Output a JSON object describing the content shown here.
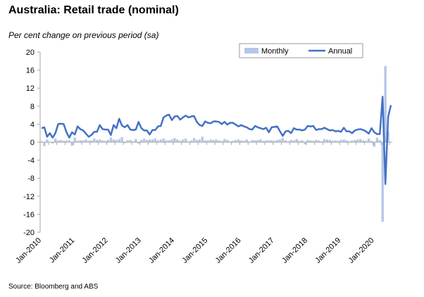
{
  "title": "Australia: Retail trade (nominal)",
  "subtitle": "Per cent change on previous period (sa)",
  "source": "Source: Bloomberg and ABS",
  "colors": {
    "monthly": "#b4c7e7",
    "annual": "#4472c4",
    "axis": "#a6a6a6"
  },
  "chart_data": {
    "type": "bar",
    "title": "Australia: Retail trade (nominal)",
    "ylabel": "Per cent change on previous period (sa)",
    "ylim": [
      -20,
      20
    ],
    "yticks": [
      -20,
      -16,
      -12,
      -8,
      -4,
      0,
      4,
      8,
      12,
      16,
      20
    ],
    "x_start": "Jan-2010",
    "xticks": [
      "Jan-2010",
      "Jan-2011",
      "Jan-2012",
      "Jan-2013",
      "Jan-2014",
      "Jan-2015",
      "Jan-2016",
      "Jan-2017",
      "Jan-2018",
      "Jan-2019",
      "Jan-2020"
    ],
    "legend": {
      "position": "top-right",
      "entries": [
        "Monthly",
        "Annual"
      ]
    },
    "grid": false,
    "series": [
      {
        "name": "Monthly",
        "type": "bar",
        "values": [
          0.2,
          -0.9,
          0.6,
          0.1,
          -0.3,
          0.8,
          0.4,
          0.5,
          0.3,
          0.4,
          0.4,
          -0.8,
          1.0,
          0.3,
          0.4,
          0.4,
          0.6,
          0.3,
          0.4,
          0.8,
          0.5,
          0.6,
          0.4,
          0.3,
          0.5,
          1.0,
          0.6,
          0.5,
          0.7,
          1.1,
          -0.2,
          0.4,
          0.5,
          0.2,
          0.7,
          -0.3,
          0.5,
          0.8,
          0.5,
          0.6,
          0.6,
          0.8,
          0.4,
          0.6,
          0.8,
          0.4,
          0.4,
          0.6,
          0.9,
          0.6,
          0.3,
          0.6,
          0.8,
          0.2,
          0.4,
          0.9,
          0.5,
          0.6,
          1.2,
          0.4,
          0.4,
          0.6,
          0.5,
          0.6,
          0.4,
          0.3,
          0.7,
          0.5,
          0.2,
          0.3,
          0.5,
          0.6,
          0.4,
          0.3,
          0.6,
          0.2,
          0.5,
          0.4,
          0.5,
          0.6,
          0.3,
          0.4,
          0.4,
          0.4,
          0.3,
          0.5,
          0.6,
          0.9,
          0.4,
          0.2,
          0.5,
          0.4,
          0.7,
          0.3,
          0.4,
          -0.5,
          0.5,
          0.4,
          0.3,
          0.5,
          0.4,
          0.2,
          0.7,
          0.6,
          0.5,
          0.3,
          0.4,
          0.3,
          0.5,
          0.6,
          0.4,
          0.2,
          0.4,
          0.5,
          0.6,
          0.7,
          0.4,
          0.3,
          0.8,
          0.3,
          -1.0,
          1.0,
          0.5,
          -17.7,
          16.9,
          2.4
        ]
      },
      {
        "name": "Annual",
        "type": "line",
        "values": [
          3.1,
          3.3,
          1.2,
          2.0,
          1.0,
          2.0,
          4.0,
          4.1,
          4.0,
          2.2,
          1.0,
          2.2,
          1.7,
          3.5,
          2.9,
          2.6,
          1.9,
          1.2,
          1.6,
          2.3,
          2.3,
          3.8,
          2.9,
          2.8,
          2.8,
          1.6,
          3.8,
          3.1,
          5.2,
          3.7,
          3.3,
          3.8,
          2.8,
          2.7,
          2.8,
          4.5,
          3.1,
          2.6,
          2.6,
          1.7,
          2.7,
          2.7,
          3.5,
          3.6,
          5.5,
          5.9,
          6.1,
          4.9,
          5.7,
          5.8,
          5.0,
          5.5,
          5.9,
          5.5,
          5.7,
          5.8,
          4.5,
          3.8,
          3.6,
          4.6,
          4.3,
          4.2,
          4.6,
          4.6,
          4.5,
          4.0,
          4.5,
          3.9,
          4.3,
          4.3,
          3.9,
          3.5,
          3.8,
          3.5,
          3.3,
          2.9,
          2.8,
          3.6,
          3.3,
          3.1,
          2.9,
          3.2,
          2.2,
          3.3,
          3.4,
          3.5,
          2.4,
          1.4,
          2.4,
          2.5,
          2.0,
          3.1,
          2.8,
          2.8,
          2.6,
          2.8,
          3.6,
          3.5,
          3.6,
          2.7,
          2.9,
          2.9,
          3.2,
          2.9,
          2.6,
          2.7,
          2.4,
          2.5,
          2.3,
          3.2,
          2.4,
          2.4,
          2.0,
          2.6,
          2.8,
          2.9,
          2.7,
          2.4,
          1.9,
          3.1,
          2.2,
          1.8,
          1.8,
          10.1,
          -9.3,
          5.6,
          8.2
        ]
      }
    ]
  }
}
